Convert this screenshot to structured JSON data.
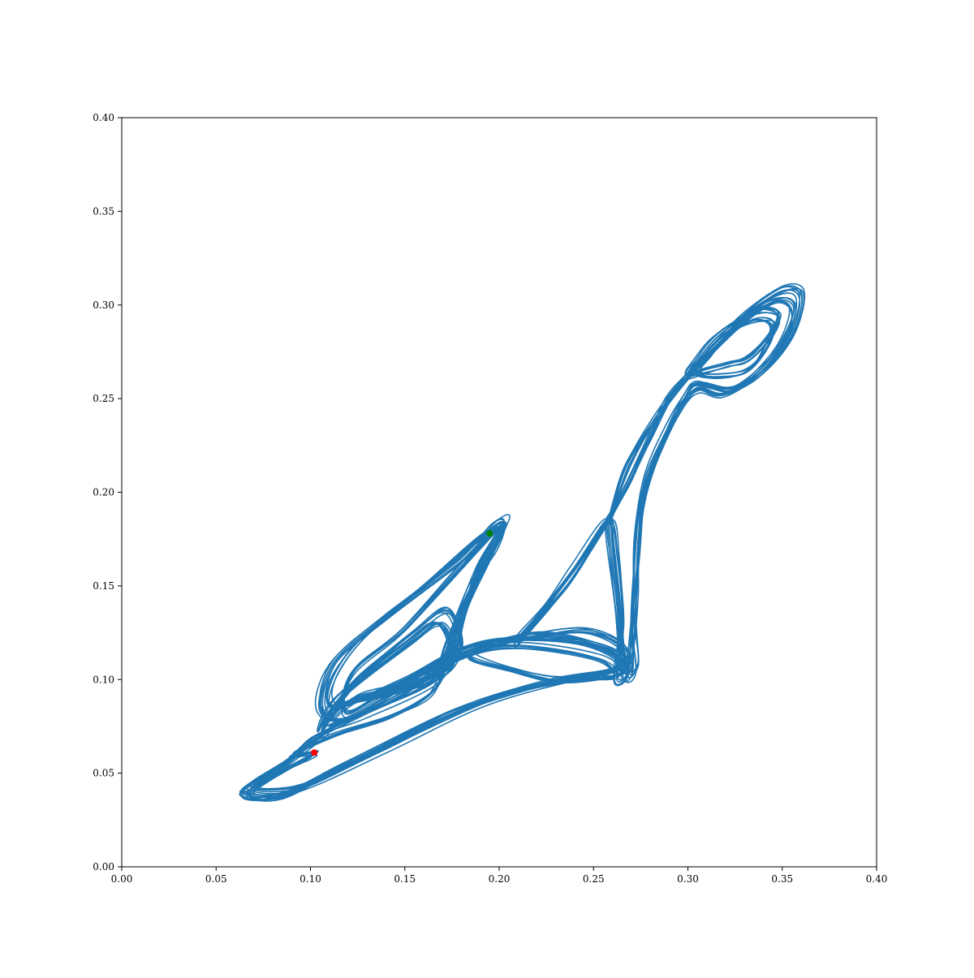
{
  "chart_data": {
    "type": "line",
    "title": "",
    "xlabel": "",
    "ylabel": "",
    "xlim": [
      0.0,
      0.4
    ],
    "ylim": [
      0.0,
      0.4
    ],
    "grid": false,
    "x_ticks": [
      "0.00",
      "0.05",
      "0.10",
      "0.15",
      "0.20",
      "0.25",
      "0.30",
      "0.35",
      "0.40"
    ],
    "y_ticks": [
      "0.00",
      "0.05",
      "0.10",
      "0.15",
      "0.20",
      "0.25",
      "0.30",
      "0.35",
      "0.40"
    ],
    "colors": {
      "trajectory": "#1f77b4",
      "start_point": "#ff0000",
      "end_point": "#008000"
    },
    "series": [
      {
        "kind": "trajectory",
        "loops": [
          [
            [
              0.102,
              0.061
            ],
            [
              0.085,
              0.052
            ],
            [
              0.066,
              0.04
            ],
            [
              0.075,
              0.037
            ],
            [
              0.1,
              0.045
            ],
            [
              0.15,
              0.07
            ],
            [
              0.2,
              0.092
            ],
            [
              0.24,
              0.101
            ],
            [
              0.262,
              0.102
            ],
            [
              0.25,
              0.113
            ],
            [
              0.2,
              0.118
            ],
            [
              0.16,
              0.104
            ],
            [
              0.12,
              0.08
            ],
            [
              0.105,
              0.085
            ],
            [
              0.112,
              0.11
            ],
            [
              0.14,
              0.135
            ],
            [
              0.18,
              0.165
            ],
            [
              0.197,
              0.183
            ],
            [
              0.203,
              0.185
            ],
            [
              0.198,
              0.172
            ],
            [
              0.185,
              0.15
            ],
            [
              0.172,
              0.118
            ],
            [
              0.168,
              0.1
            ],
            [
              0.16,
              0.09
            ],
            [
              0.14,
              0.08
            ],
            [
              0.11,
              0.07
            ],
            [
              0.09,
              0.06
            ]
          ],
          [
            [
              0.09,
              0.058
            ],
            [
              0.07,
              0.045
            ],
            [
              0.064,
              0.039
            ],
            [
              0.085,
              0.038
            ],
            [
              0.12,
              0.055
            ],
            [
              0.175,
              0.082
            ],
            [
              0.225,
              0.098
            ],
            [
              0.258,
              0.104
            ],
            [
              0.265,
              0.11
            ],
            [
              0.24,
              0.12
            ],
            [
              0.19,
              0.119
            ],
            [
              0.15,
              0.1
            ],
            [
              0.115,
              0.085
            ],
            [
              0.11,
              0.096
            ],
            [
              0.125,
              0.12
            ],
            [
              0.16,
              0.15
            ],
            [
              0.19,
              0.176
            ],
            [
              0.2,
              0.18
            ],
            [
              0.19,
              0.162
            ],
            [
              0.18,
              0.135
            ],
            [
              0.17,
              0.11
            ],
            [
              0.15,
              0.093
            ],
            [
              0.12,
              0.078
            ],
            [
              0.1,
              0.068
            ]
          ],
          [
            [
              0.108,
              0.072
            ],
            [
              0.08,
              0.05
            ],
            [
              0.068,
              0.041
            ],
            [
              0.095,
              0.042
            ],
            [
              0.14,
              0.063
            ],
            [
              0.19,
              0.087
            ],
            [
              0.235,
              0.1
            ],
            [
              0.266,
              0.106
            ],
            [
              0.258,
              0.116
            ],
            [
              0.22,
              0.124
            ],
            [
              0.18,
              0.113
            ],
            [
              0.14,
              0.093
            ],
            [
              0.118,
              0.082
            ],
            [
              0.122,
              0.104
            ],
            [
              0.15,
              0.128
            ],
            [
              0.188,
              0.17
            ],
            [
              0.202,
              0.182
            ],
            [
              0.195,
              0.165
            ],
            [
              0.183,
              0.14
            ],
            [
              0.176,
              0.115
            ],
            [
              0.165,
              0.098
            ],
            [
              0.13,
              0.082
            ],
            [
              0.11,
              0.075
            ]
          ],
          [
            [
              0.105,
              0.072
            ],
            [
              0.115,
              0.09
            ],
            [
              0.15,
              0.118
            ],
            [
              0.168,
              0.13
            ],
            [
              0.175,
              0.112
            ],
            [
              0.165,
              0.1
            ],
            [
              0.14,
              0.092
            ],
            [
              0.115,
              0.085
            ]
          ],
          [
            [
              0.11,
              0.08
            ],
            [
              0.125,
              0.1
            ],
            [
              0.155,
              0.125
            ],
            [
              0.172,
              0.137
            ],
            [
              0.18,
              0.12
            ],
            [
              0.172,
              0.105
            ],
            [
              0.15,
              0.096
            ],
            [
              0.125,
              0.09
            ]
          ],
          [
            [
              0.19,
              0.117
            ],
            [
              0.215,
              0.123
            ],
            [
              0.245,
              0.126
            ],
            [
              0.264,
              0.118
            ],
            [
              0.266,
              0.106
            ],
            [
              0.255,
              0.102
            ],
            [
              0.23,
              0.1
            ],
            [
              0.205,
              0.106
            ],
            [
              0.185,
              0.112
            ]
          ],
          [
            [
              0.212,
              0.123
            ],
            [
              0.235,
              0.15
            ],
            [
              0.255,
              0.18
            ],
            [
              0.268,
              0.205
            ],
            [
              0.28,
              0.23
            ],
            [
              0.29,
              0.25
            ],
            [
              0.3,
              0.262
            ],
            [
              0.315,
              0.278
            ],
            [
              0.33,
              0.295
            ],
            [
              0.35,
              0.308
            ],
            [
              0.36,
              0.305
            ],
            [
              0.355,
              0.285
            ],
            [
              0.34,
              0.265
            ],
            [
              0.322,
              0.255
            ],
            [
              0.305,
              0.258
            ],
            [
              0.298,
              0.25
            ],
            [
              0.29,
              0.235
            ],
            [
              0.278,
              0.208
            ],
            [
              0.273,
              0.175
            ],
            [
              0.272,
              0.145
            ],
            [
              0.27,
              0.12
            ],
            [
              0.268,
              0.104
            ],
            [
              0.262,
              0.102
            ],
            [
              0.265,
              0.13
            ],
            [
              0.262,
              0.165
            ],
            [
              0.258,
              0.185
            ],
            [
              0.24,
              0.16
            ],
            [
              0.225,
              0.14
            ],
            [
              0.212,
              0.123
            ]
          ],
          [
            [
              0.26,
              0.19
            ],
            [
              0.268,
              0.215
            ],
            [
              0.283,
              0.24
            ],
            [
              0.298,
              0.26
            ],
            [
              0.312,
              0.275
            ],
            [
              0.332,
              0.294
            ],
            [
              0.348,
              0.303
            ],
            [
              0.356,
              0.298
            ],
            [
              0.35,
              0.28
            ],
            [
              0.335,
              0.262
            ],
            [
              0.318,
              0.252
            ],
            [
              0.305,
              0.255
            ],
            [
              0.296,
              0.245
            ],
            [
              0.286,
              0.225
            ],
            [
              0.276,
              0.198
            ],
            [
              0.273,
              0.165
            ],
            [
              0.271,
              0.13
            ],
            [
              0.272,
              0.106
            ],
            [
              0.266,
              0.104
            ],
            [
              0.262,
              0.14
            ],
            [
              0.258,
              0.18
            ]
          ],
          [
            [
              0.3,
              0.262
            ],
            [
              0.31,
              0.265
            ],
            [
              0.322,
              0.268
            ],
            [
              0.333,
              0.272
            ],
            [
              0.345,
              0.285
            ],
            [
              0.348,
              0.295
            ],
            [
              0.338,
              0.297
            ],
            [
              0.325,
              0.29
            ],
            [
              0.313,
              0.28
            ],
            [
              0.305,
              0.27
            ]
          ],
          [
            [
              0.305,
              0.264
            ],
            [
              0.318,
              0.262
            ],
            [
              0.332,
              0.265
            ],
            [
              0.342,
              0.278
            ],
            [
              0.345,
              0.29
            ],
            [
              0.336,
              0.292
            ],
            [
              0.322,
              0.285
            ],
            [
              0.312,
              0.274
            ]
          ]
        ]
      }
    ],
    "markers": [
      {
        "name": "start",
        "x": 0.102,
        "y": 0.061
      },
      {
        "name": "end",
        "x": 0.195,
        "y": 0.178
      }
    ]
  }
}
